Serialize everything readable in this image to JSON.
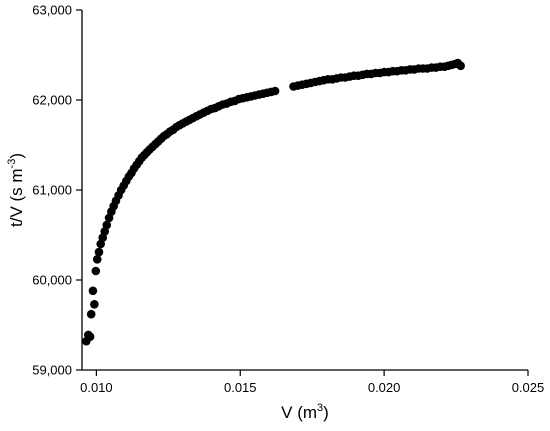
{
  "chart_data": {
    "type": "scatter",
    "title": "",
    "xlabel": {
      "base": "V (m",
      "sup": "3",
      "tail": ")"
    },
    "ylabel": {
      "base": "t/V (s m",
      "sup": "-3",
      "tail": ")"
    },
    "xlim": [
      0.0095,
      0.025
    ],
    "ylim": [
      59000,
      63000
    ],
    "xticks": [
      0.01,
      0.015,
      0.02,
      0.025
    ],
    "xtick_labels": [
      "0.010",
      "0.015",
      "0.020",
      "0.025"
    ],
    "yticks": [
      59000,
      60000,
      61000,
      62000,
      63000
    ],
    "ytick_labels": [
      "59,000",
      "60,000",
      "61,000",
      "62,000",
      "63,000"
    ],
    "grid": false,
    "legend": "none",
    "marker_color": "#000000",
    "series": [
      {
        "x": [
          0.00965,
          0.00972,
          0.00978,
          0.00982,
          0.00988,
          0.00993,
          0.00998,
          0.01003,
          0.01009,
          0.01015,
          0.01022,
          0.01029,
          0.01036,
          0.01044,
          0.01052,
          0.0106,
          0.01068,
          0.01077,
          0.01086,
          0.01095,
          0.01104,
          0.01113,
          0.01122,
          0.01131,
          0.0114,
          0.01149,
          0.01158,
          0.01167,
          0.01176,
          0.01185,
          0.01195,
          0.01205,
          0.01215,
          0.01225,
          0.01235,
          0.01245,
          0.01256,
          0.01267,
          0.01278,
          0.01289,
          0.013,
          0.01312,
          0.01324,
          0.01336,
          0.01348,
          0.0136,
          0.01373,
          0.01386,
          0.01399,
          0.01412,
          0.01425,
          0.01439,
          0.01453,
          0.01467,
          0.01481,
          0.01495,
          0.01509,
          0.01523,
          0.01537,
          0.01551,
          0.01565,
          0.01579,
          0.01593,
          0.01607,
          0.01621,
          0.01685,
          0.017,
          0.01715,
          0.0173,
          0.01745,
          0.0176,
          0.01775,
          0.0179,
          0.01805,
          0.0182,
          0.01835,
          0.0185,
          0.01865,
          0.0188,
          0.01895,
          0.0191,
          0.01925,
          0.0194,
          0.01955,
          0.0197,
          0.01985,
          0.02,
          0.02015,
          0.0203,
          0.02045,
          0.0206,
          0.02075,
          0.0209,
          0.02105,
          0.0212,
          0.02135,
          0.0215,
          0.02165,
          0.0218,
          0.02195,
          0.0221,
          0.02222,
          0.02234,
          0.02246,
          0.02256,
          0.02266
        ],
        "y": [
          59320,
          59390,
          59370,
          59620,
          59880,
          59730,
          60100,
          60230,
          60310,
          60400,
          60470,
          60540,
          60610,
          60690,
          60760,
          60820,
          60880,
          60940,
          61000,
          61050,
          61100,
          61150,
          61190,
          61240,
          61280,
          61320,
          61360,
          61390,
          61420,
          61450,
          61480,
          61510,
          61540,
          61570,
          61600,
          61620,
          61650,
          61670,
          61700,
          61720,
          61740,
          61760,
          61780,
          61800,
          61820,
          61840,
          61860,
          61880,
          61900,
          61910,
          61930,
          61950,
          61960,
          61980,
          61990,
          62010,
          62020,
          62030,
          62040,
          62050,
          62060,
          62070,
          62080,
          62090,
          62100,
          62150,
          62160,
          62170,
          62180,
          62190,
          62200,
          62210,
          62220,
          62230,
          62230,
          62240,
          62250,
          62250,
          62260,
          62270,
          62270,
          62280,
          62290,
          62290,
          62300,
          62300,
          62310,
          62310,
          62320,
          62320,
          62330,
          62330,
          62340,
          62340,
          62350,
          62350,
          62350,
          62360,
          62360,
          62370,
          62370,
          62380,
          62390,
          62400,
          62410,
          62380
        ]
      }
    ]
  }
}
